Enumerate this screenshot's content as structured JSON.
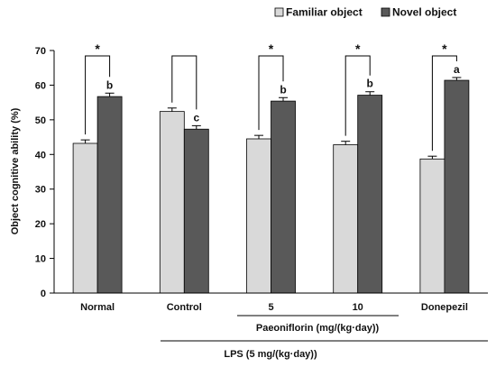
{
  "chart_data": {
    "type": "bar",
    "title": "",
    "xlabel": "",
    "ylabel": "Object cognitive ability (%)",
    "ylim": [
      0,
      70
    ],
    "yticks": [
      0,
      10,
      20,
      30,
      40,
      50,
      60,
      70
    ],
    "grid": false,
    "legend_position": "top-right",
    "categories": [
      "Normal",
      "Control",
      "5",
      "10",
      "Donepezil"
    ],
    "series": [
      {
        "name": "Familiar object",
        "color": "#d9d9d9",
        "values": [
          43.2,
          52.4,
          44.5,
          42.8,
          38.7
        ],
        "errors": [
          1.0,
          1.0,
          1.0,
          1.0,
          0.8
        ]
      },
      {
        "name": "Novel object",
        "color": "#595959",
        "values": [
          56.7,
          47.3,
          55.4,
          57.1,
          61.4
        ],
        "errors": [
          1.0,
          1.0,
          1.0,
          1.0,
          0.8
        ]
      }
    ],
    "letters": [
      "b",
      "c",
      "b",
      "b",
      "a"
    ],
    "significance": [
      "*",
      "",
      "*",
      "*",
      "*"
    ],
    "group_labels": {
      "paeoniflorin": "Paeoniflorin (mg/(kg·day))",
      "lps": "LPS (5 mg/(kg·day))"
    }
  }
}
